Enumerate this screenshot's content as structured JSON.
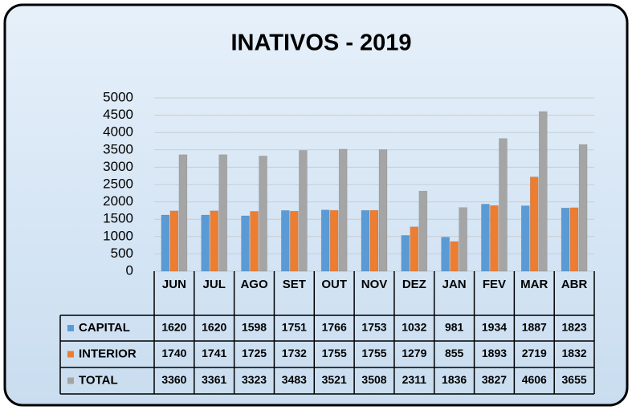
{
  "chart_data": {
    "type": "bar",
    "title": "INATIVOS - 2019",
    "categories": [
      "JUN",
      "JUL",
      "AGO",
      "SET",
      "OUT",
      "NOV",
      "DEZ",
      "JAN",
      "FEV",
      "MAR",
      "ABR"
    ],
    "series": [
      {
        "name": "CAPITAL",
        "color": "#5b9bd5",
        "values": [
          1620,
          1620,
          1598,
          1751,
          1766,
          1753,
          1032,
          981,
          1934,
          1887,
          1823
        ]
      },
      {
        "name": "INTERIOR",
        "color": "#ed7d31",
        "values": [
          1740,
          1741,
          1725,
          1732,
          1755,
          1755,
          1279,
          855,
          1893,
          2719,
          1832
        ]
      },
      {
        "name": "TOTAL",
        "color": "#a5a5a5",
        "values": [
          3360,
          3361,
          3323,
          3483,
          3521,
          3508,
          2311,
          1836,
          3827,
          4606,
          3655
        ]
      }
    ],
    "ylim": [
      0,
      5000
    ],
    "yticks": [
      0,
      500,
      1000,
      1500,
      2000,
      2500,
      3000,
      3500,
      4000,
      4500,
      5000
    ],
    "grid": true
  }
}
